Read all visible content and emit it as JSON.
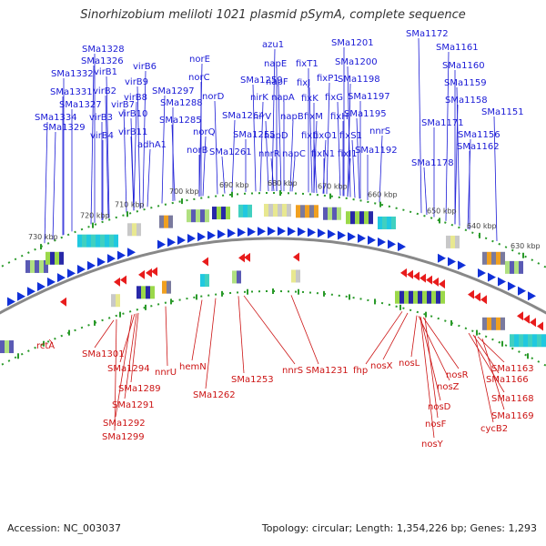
{
  "title": "Sinorhizobium meliloti 1021 plasmid pSymA, complete sequence",
  "footer": {
    "accession": "Accession: NC_003037",
    "info": "Topology: circular; Length: 1,354,226 bp; Genes: 1,293"
  },
  "ticks": [
    "730 kbp",
    "720 kbp",
    "710 kbp",
    "700 kbp",
    "690 kbp",
    "680 kbp",
    "670 kbp",
    "660 kbp",
    "650 kbp",
    "640 kbp",
    "630 kbp"
  ],
  "top_labels": [
    "virB6",
    "SMa1328",
    "virB9",
    "SMa1326",
    "SMa1332",
    "virB1",
    "virB8",
    "SMa1331",
    "virB2",
    "SMa1297",
    "SMa1327",
    "virB7",
    "SMa1334",
    "virB3",
    "virB10",
    "SMa1329",
    "virB4",
    "virB11",
    "adhA1",
    "SMa1288",
    "SMa1285",
    "norE",
    "norC",
    "norD",
    "norQ",
    "norB",
    "SMa1259",
    "SMa1264",
    "SMa1255",
    "SMa1261",
    "azu1",
    "napE",
    "napF",
    "nirK",
    "napA",
    "nirV",
    "napB",
    "napD",
    "nnrR",
    "napC",
    "fixT1",
    "fixJ",
    "fixP1",
    "fixK",
    "fixG",
    "fixM",
    "fixH",
    "fixL",
    "fixO1",
    "fixN1",
    "fixS1",
    "fixI1",
    "SMa1201",
    "SMa1200",
    "SMa1198",
    "SMa1197",
    "SMa1195",
    "nnrS",
    "SMa1192",
    "SMa1172",
    "SMa1161",
    "SMa1160",
    "SMa1159",
    "SMa1158",
    "SMa1171",
    "SMa1151",
    "SMa1156",
    "SMa1162",
    "SMa1178"
  ],
  "bottom_labels": [
    "rctA",
    "SMa1301",
    "SMa1294",
    "SMa1289",
    "SMa1291",
    "SMa1292",
    "SMa1299",
    "nnrU",
    "hemN",
    "SMa1262",
    "SMa1253",
    "nnrS",
    "SMa1231",
    "fhp",
    "nosX",
    "nosL",
    "nosR",
    "nosZ",
    "nosD",
    "nosF",
    "nosY",
    "SMa1163",
    "SMa1166",
    "SMa1168",
    "SMa1169",
    "cycB2"
  ]
}
